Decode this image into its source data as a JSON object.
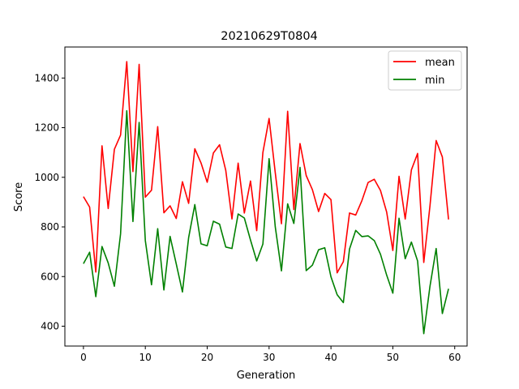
{
  "chart_data": {
    "type": "line",
    "title": "20210629T0804",
    "xlabel": "Generation",
    "ylabel": "Score",
    "xlim": [
      -3,
      62
    ],
    "ylim": [
      320,
      1525
    ],
    "xticks": [
      0,
      10,
      20,
      30,
      40,
      50,
      60
    ],
    "yticks": [
      400,
      600,
      800,
      1000,
      1200,
      1400
    ],
    "grid": false,
    "legend_position": "top-right",
    "x": [
      0,
      1,
      2,
      3,
      4,
      5,
      6,
      7,
      8,
      9,
      10,
      11,
      12,
      13,
      14,
      15,
      16,
      17,
      18,
      19,
      20,
      21,
      22,
      23,
      24,
      25,
      26,
      27,
      28,
      29,
      30,
      31,
      32,
      33,
      34,
      35,
      36,
      37,
      38,
      39,
      40,
      41,
      42,
      43,
      44,
      45,
      46,
      47,
      48,
      49,
      50,
      51,
      52,
      53,
      54,
      55,
      56,
      57,
      58,
      59
    ],
    "series": [
      {
        "name": "mean",
        "color": "#ff0000",
        "values": [
          922,
          880,
          618,
          1127,
          874,
          1113,
          1170,
          1466,
          1023,
          1455,
          920,
          948,
          1204,
          857,
          885,
          834,
          982,
          895,
          1115,
          1058,
          980,
          1098,
          1131,
          1028,
          832,
          1057,
          856,
          985,
          785,
          1100,
          1237,
          1018,
          813,
          1266,
          870,
          1136,
          1007,
          950,
          862,
          935,
          910,
          615,
          660,
          856,
          848,
          906,
          979,
          992,
          947,
          860,
          705,
          1004,
          832,
          1030,
          1096,
          657,
          885,
          1148,
          1082,
          830
        ],
        "label": "mean"
      },
      {
        "name": "min",
        "color": "#008000",
        "values": [
          652,
          698,
          519,
          721,
          655,
          561,
          772,
          1268,
          822,
          1221,
          745,
          567,
          793,
          546,
          762,
          651,
          538,
          757,
          890,
          732,
          724,
          823,
          811,
          719,
          713,
          852,
          836,
          747,
          663,
          731,
          1075,
          800,
          623,
          893,
          814,
          1040,
          624,
          646,
          708,
          716,
          599,
          527,
          495,
          711,
          786,
          761,
          764,
          745,
          690,
          606,
          533,
          835,
          672,
          739,
          663,
          370,
          561,
          713,
          451,
          551
        ],
        "label": "min"
      }
    ]
  }
}
